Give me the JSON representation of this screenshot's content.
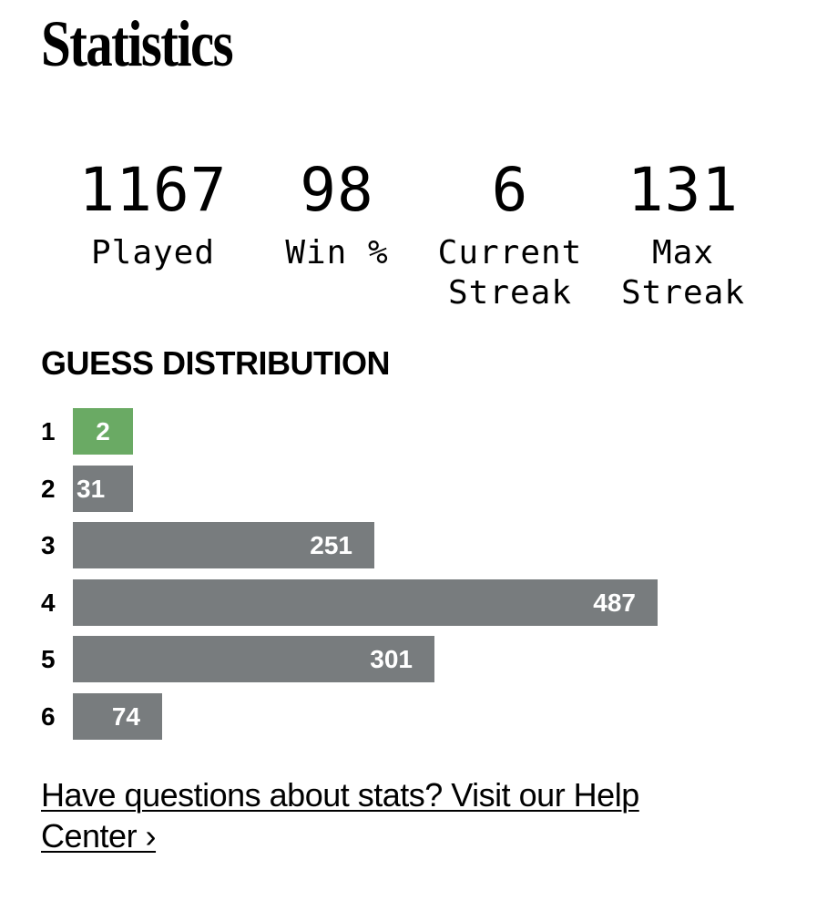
{
  "title": "Statistics",
  "stats": [
    {
      "value": "1167",
      "label": "Played"
    },
    {
      "value": "98",
      "label": "Win %"
    },
    {
      "value": "6",
      "label": "Current\nStreak"
    },
    {
      "value": "131",
      "label": "Max\nStreak"
    }
  ],
  "guess_distribution": {
    "title": "GUESS DISTRIBUTION",
    "rows": [
      {
        "guess": "1",
        "count": "2",
        "highlighted": true
      },
      {
        "guess": "2",
        "count": "31",
        "highlighted": false
      },
      {
        "guess": "3",
        "count": "251",
        "highlighted": false
      },
      {
        "guess": "4",
        "count": "487",
        "highlighted": false
      },
      {
        "guess": "5",
        "count": "301",
        "highlighted": false
      },
      {
        "guess": "6",
        "count": "74",
        "highlighted": false
      }
    ],
    "colors": {
      "highlight": "#6aaa64",
      "default": "#787c7e",
      "text": "#ffffff"
    }
  },
  "help_link": {
    "text": "Have questions about stats? Visit our Help Center ›"
  }
}
